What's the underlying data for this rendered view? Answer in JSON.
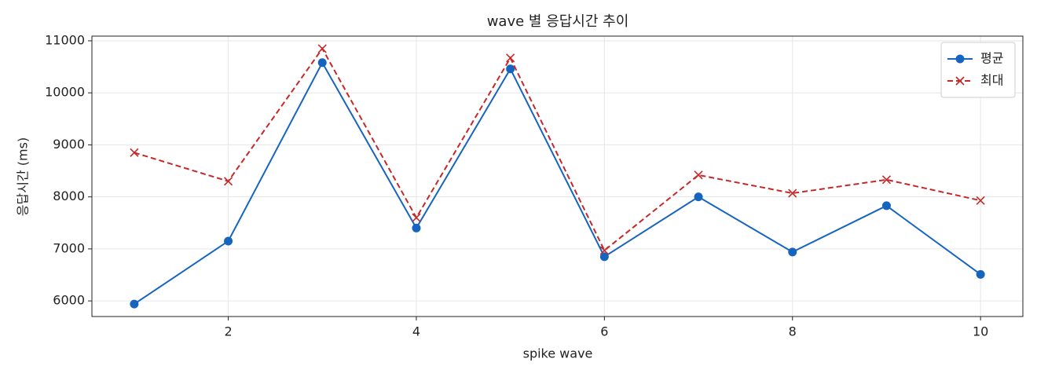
{
  "chart_data": {
    "type": "line",
    "title": "wave 별 응답시간 추이",
    "x_label": "spike wave",
    "y_label": "응답시간 (ms)",
    "x": [
      1,
      2,
      3,
      4,
      5,
      6,
      7,
      8,
      9,
      10
    ],
    "series": [
      {
        "name": "평균",
        "color": "#1565c0",
        "marker": "o",
        "dashed": false,
        "values": [
          5940,
          7150,
          10580,
          7400,
          10460,
          6850,
          8000,
          6940,
          7830,
          6510
        ]
      },
      {
        "name": "최대",
        "color": "#c62828",
        "marker": "x",
        "dashed": true,
        "values": [
          8850,
          8300,
          10850,
          7600,
          10670,
          6970,
          8420,
          8070,
          8330,
          7930
        ]
      }
    ],
    "xlim": [
      0.55,
      10.45
    ],
    "xticks": [
      2,
      4,
      6,
      8,
      10
    ],
    "ylim": [
      5700,
      11090
    ],
    "yticks": [
      6000,
      7000,
      8000,
      9000,
      10000,
      11000
    ],
    "grid": true,
    "legend": "upper right"
  }
}
